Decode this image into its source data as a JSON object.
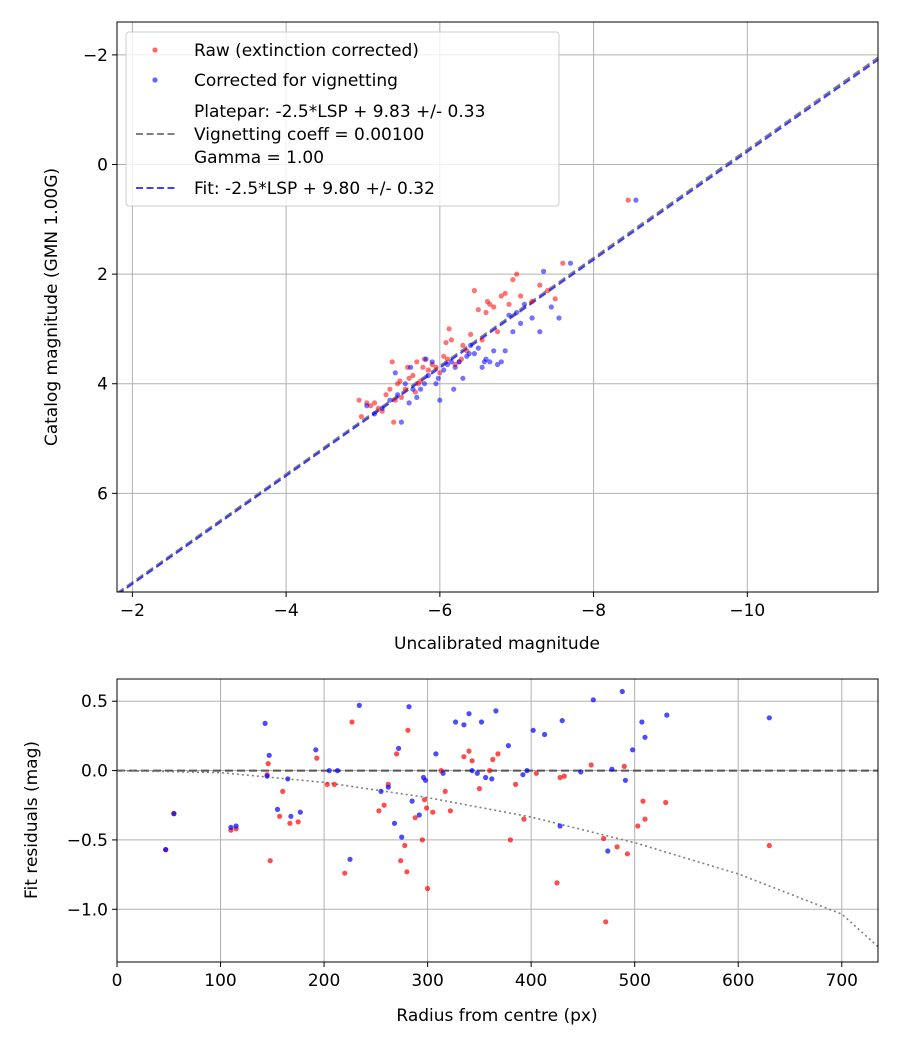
{
  "chart_data": [
    {
      "type": "scatter",
      "title": "",
      "xlabel": "Uncalibrated magnitude",
      "ylabel": "Catalog magnitude (GMN 1.00G)",
      "xlim": [
        -1.8,
        -11.7
      ],
      "ylim": [
        7.8,
        -2.6
      ],
      "x_ticks": [
        -2,
        -4,
        -6,
        -8,
        -10
      ],
      "y_ticks": [
        -2,
        0,
        2,
        4,
        6
      ],
      "x_tick_labels": [
        "−2",
        "−4",
        "−6",
        "−8",
        "−10"
      ],
      "y_tick_labels": [
        "−2",
        "0",
        "2",
        "4",
        "6"
      ],
      "grid": true,
      "legend_position": "top-left",
      "legend": [
        {
          "label": "Raw (extinction corrected)",
          "marker": "dot",
          "color": "#ff0000"
        },
        {
          "label": "Corrected for vignetting",
          "marker": "dot",
          "color": "#0000ff"
        },
        {
          "label": "Platepar: -2.5*LSP + 9.83 +/- 0.33",
          "marker": "dashed-line",
          "color": "#808080"
        },
        {
          "label": "Vignetting coeff = 0.00100",
          "marker": "none",
          "color": "#808080"
        },
        {
          "label": "Gamma = 1.00",
          "marker": "none",
          "color": "#808080"
        },
        {
          "label": "Fit: -2.5*LSP + 9.80 +/- 0.32",
          "marker": "dashed-line",
          "color": "#0000ff"
        }
      ],
      "lines": [
        {
          "name": "Platepar",
          "color": "#808080",
          "x": [
            -1.8,
            -11.7
          ],
          "y": [
            7.82,
            -1.95
          ]
        },
        {
          "name": "Fit",
          "color": "#0000ff",
          "x": [
            -1.8,
            -11.7
          ],
          "y": [
            7.85,
            -1.91
          ]
        }
      ],
      "series": [
        {
          "name": "Raw (extinction corrected)",
          "color": "#ff0000",
          "x": [
            -4.95,
            -5.05,
            -5.1,
            -5.2,
            -5.25,
            -5.3,
            -5.35,
            -5.38,
            -5.4,
            -5.42,
            -5.45,
            -5.5,
            -5.55,
            -5.6,
            -5.65,
            -5.7,
            -5.72,
            -5.75,
            -5.8,
            -5.85,
            -5.9,
            -5.95,
            -6.0,
            -6.05,
            -6.1,
            -6.12,
            -6.15,
            -6.2,
            -6.25,
            -6.3,
            -6.35,
            -6.4,
            -6.45,
            -6.5,
            -6.55,
            -6.6,
            -6.62,
            -6.65,
            -6.7,
            -6.75,
            -6.8,
            -6.85,
            -6.9,
            -6.95,
            -7.0,
            -7.05,
            -7.2,
            -7.3,
            -7.4,
            -7.5,
            -7.6,
            -8.45,
            -5.48,
            -5.58,
            -5.68,
            -5.78,
            -6.08,
            -6.28,
            -4.98,
            -5.15
          ],
          "y": [
            4.3,
            4.35,
            4.4,
            4.45,
            4.5,
            4.2,
            4.1,
            3.6,
            4.7,
            4.3,
            4.0,
            4.25,
            4.1,
            3.9,
            3.85,
            3.6,
            4.0,
            3.95,
            3.55,
            3.75,
            3.65,
            3.7,
            3.8,
            3.5,
            3.55,
            3.0,
            3.2,
            3.65,
            3.6,
            3.3,
            3.4,
            3.1,
            2.3,
            2.65,
            3.2,
            2.7,
            2.5,
            2.55,
            2.6,
            3.05,
            2.4,
            2.35,
            2.55,
            2.1,
            2.0,
            2.4,
            2.5,
            2.2,
            2.3,
            2.45,
            1.8,
            0.65,
            3.95,
            3.7,
            4.15,
            3.7,
            3.25,
            3.55,
            4.6,
            4.35
          ]
        },
        {
          "name": "Corrected for vignetting",
          "color": "#0000ff",
          "x": [
            -5.05,
            -5.15,
            -5.25,
            -5.35,
            -5.45,
            -5.5,
            -5.55,
            -5.6,
            -5.65,
            -5.7,
            -5.75,
            -5.8,
            -5.85,
            -5.9,
            -5.95,
            -6.0,
            -6.05,
            -6.1,
            -6.15,
            -6.2,
            -6.25,
            -6.3,
            -6.35,
            -6.4,
            -6.45,
            -6.5,
            -6.55,
            -6.6,
            -6.65,
            -6.7,
            -6.75,
            -6.8,
            -6.85,
            -6.9,
            -6.95,
            -7.0,
            -7.05,
            -7.1,
            -7.2,
            -7.3,
            -7.35,
            -7.45,
            -7.55,
            -7.7,
            -8.55,
            -5.42,
            -5.62,
            -5.82,
            -5.98,
            -6.18,
            -6.38,
            -6.58
          ],
          "y": [
            4.4,
            4.55,
            4.45,
            4.3,
            4.2,
            4.7,
            4.0,
            4.35,
            4.1,
            4.25,
            4.1,
            4.0,
            3.85,
            3.6,
            4.0,
            4.3,
            3.75,
            3.65,
            3.6,
            3.7,
            3.6,
            3.9,
            3.5,
            3.3,
            3.45,
            3.35,
            3.7,
            3.55,
            3.6,
            3.4,
            3.65,
            3.6,
            3.4,
            2.75,
            3.05,
            2.7,
            2.9,
            2.55,
            2.8,
            3.05,
            1.95,
            2.6,
            2.8,
            1.8,
            0.65,
            3.8,
            3.7,
            3.55,
            3.9,
            4.1,
            3.45,
            3.6
          ]
        }
      ]
    },
    {
      "type": "scatter",
      "title": "",
      "xlabel": "Radius from centre (px)",
      "ylabel": "Fit residuals (mag)",
      "xlim": [
        0,
        735
      ],
      "ylim": [
        -1.38,
        0.66
      ],
      "x_ticks": [
        0,
        100,
        200,
        300,
        400,
        500,
        600,
        700
      ],
      "y_ticks": [
        0.5,
        0.0,
        -0.5,
        -1.0
      ],
      "x_tick_labels": [
        "0",
        "100",
        "200",
        "300",
        "400",
        "500",
        "600",
        "700"
      ],
      "y_tick_labels": [
        "0.5",
        "0.0",
        "−0.5",
        "−1.0"
      ],
      "grid": true,
      "lines": [
        {
          "name": "zero",
          "color": "#555555",
          "style": "dashed",
          "x": [
            0,
            735
          ],
          "y": [
            0,
            0
          ]
        },
        {
          "name": "vignetting",
          "color": "#808080",
          "style": "dotted",
          "x": [
            0,
            100,
            200,
            300,
            400,
            500,
            600,
            700,
            735
          ],
          "y": [
            0.0,
            -0.015,
            -0.085,
            -0.195,
            -0.335,
            -0.52,
            -0.745,
            -1.035,
            -1.27
          ]
        }
      ],
      "series": [
        {
          "name": "Raw (extinction corrected)",
          "color": "#ff0000",
          "x": [
            47,
            55,
            110,
            115,
            145,
            146,
            148,
            157,
            160,
            167,
            175,
            193,
            203,
            210,
            220,
            227,
            253,
            258,
            262,
            270,
            274,
            278,
            280,
            281,
            288,
            295,
            297,
            299,
            300,
            305,
            313,
            317,
            322,
            335,
            340,
            343,
            350,
            360,
            363,
            368,
            380,
            385,
            393,
            405,
            425,
            428,
            432,
            458,
            470,
            472,
            483,
            490,
            493,
            503,
            508,
            510,
            530,
            630
          ],
          "y": [
            -0.57,
            -0.31,
            -0.43,
            -0.42,
            -0.03,
            0.05,
            -0.65,
            -0.33,
            -0.15,
            -0.38,
            -0.37,
            0.09,
            -0.1,
            -0.1,
            -0.74,
            0.35,
            -0.29,
            -0.25,
            -0.1,
            0.12,
            -0.65,
            -0.54,
            -0.73,
            0.29,
            -0.34,
            -0.5,
            -0.21,
            -0.27,
            -0.85,
            -0.3,
            0.0,
            -0.15,
            -0.29,
            0.1,
            0.14,
            0.07,
            -0.13,
            0.0,
            0.08,
            0.12,
            -0.5,
            -0.1,
            -0.35,
            -0.02,
            -0.81,
            -0.05,
            -0.04,
            0.04,
            -0.49,
            -1.09,
            -0.55,
            0.03,
            -0.6,
            -0.4,
            -0.22,
            -0.35,
            -0.23,
            -0.54
          ]
        },
        {
          "name": "Corrected for vignetting",
          "color": "#0000ff",
          "x": [
            47,
            55,
            110,
            115,
            143,
            145,
            147,
            155,
            165,
            168,
            177,
            192,
            205,
            213,
            225,
            234,
            255,
            262,
            268,
            272,
            275,
            282,
            285,
            292,
            296,
            298,
            308,
            315,
            327,
            335,
            340,
            343,
            348,
            352,
            356,
            362,
            366,
            378,
            392,
            396,
            402,
            413,
            428,
            430,
            448,
            460,
            474,
            478,
            488,
            491,
            498,
            507,
            510,
            531,
            630
          ],
          "y": [
            -0.57,
            -0.31,
            -0.41,
            -0.4,
            0.34,
            -0.04,
            0.11,
            -0.28,
            -0.06,
            -0.33,
            -0.3,
            0.15,
            0.0,
            0.0,
            -0.64,
            0.47,
            -0.15,
            -0.12,
            -0.38,
            0.16,
            -0.48,
            0.46,
            -0.22,
            -0.32,
            -0.05,
            -0.07,
            0.12,
            -0.02,
            0.35,
            0.33,
            0.41,
            0.0,
            -0.02,
            0.35,
            -0.05,
            -0.06,
            0.43,
            0.18,
            -0.03,
            0.0,
            0.29,
            0.26,
            -0.4,
            0.36,
            -0.01,
            0.51,
            -0.58,
            0.01,
            0.57,
            -0.07,
            0.15,
            0.35,
            0.24,
            0.4,
            0.38
          ]
        }
      ]
    }
  ]
}
